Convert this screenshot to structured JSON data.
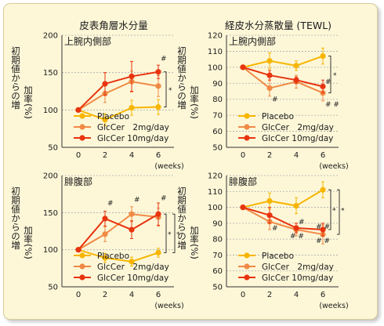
{
  "column_titles": [
    "皮表角層水分量",
    "経皮水分蒸散量 (TEWL)"
  ],
  "colors": {
    "Placebo": "#f7b500",
    "GlcCer 2mg/day": "#f08a45",
    "GlcCer 10mg/day": "#e8340f",
    "card_bg": "#fdf7d8"
  },
  "chart_data": [
    {
      "type": "line",
      "title": "皮表角層水分量",
      "subtitle": "上腕内側部",
      "ylabel": "初期値からの増加率(%)",
      "x_unit": "(weeks)",
      "x": [
        0,
        2,
        4,
        6
      ],
      "ylim": [
        50,
        200
      ],
      "yticks": [
        50,
        100,
        150,
        200
      ],
      "grid": "dashed-horizontal",
      "legend": "bottom",
      "series": [
        {
          "name": "Placebo",
          "values": [
            100,
            87,
            103,
            104
          ],
          "error": [
            0,
            8,
            10,
            10
          ]
        },
        {
          "name": "GlcCer　2mg/day",
          "values": [
            100,
            122,
            138,
            132
          ],
          "error": [
            0,
            12,
            14,
            14
          ]
        },
        {
          "name": "GlcCer  10mg/day",
          "values": [
            100,
            135,
            145,
            151
          ],
          "error": [
            0,
            15,
            20,
            9
          ]
        }
      ],
      "annotations": [
        {
          "text": "#",
          "x": 6,
          "y": 169
        },
        {
          "text": "*",
          "x_offset": "right-bracket",
          "y": 130
        }
      ]
    },
    {
      "type": "line",
      "title": "経皮水分蒸散量 (TEWL)",
      "subtitle": "上腕内側部",
      "ylabel": "初期値からの増加率(%)",
      "x_unit": "(weeks)",
      "x": [
        0,
        2,
        4,
        6
      ],
      "ylim": [
        50,
        120
      ],
      "yticks": [
        50,
        60,
        70,
        80,
        90,
        100,
        110,
        120
      ],
      "grid": "dashed-horizontal",
      "legend": "bottom",
      "series": [
        {
          "name": "Placebo",
          "values": [
            100,
            104,
            101,
            107
          ],
          "error": [
            0,
            5,
            3,
            5
          ]
        },
        {
          "name": "GlcCer　2mg/day",
          "values": [
            100,
            87,
            91,
            84
          ],
          "error": [
            0,
            5,
            4,
            5
          ]
        },
        {
          "name": "GlcCer  10mg/day",
          "values": [
            100,
            95,
            92,
            88
          ],
          "error": [
            0,
            3,
            2,
            4
          ]
        }
      ],
      "annotations": [
        {
          "text": "#",
          "x": 2,
          "y": 80
        },
        {
          "text": "#",
          "x": 6,
          "y": 91
        },
        {
          "text": "# #",
          "x": 6,
          "y": 77
        },
        {
          "text": "*",
          "x_offset": "right-bracket",
          "y": 98
        }
      ]
    },
    {
      "type": "line",
      "title": "皮表角層水分量",
      "subtitle": "腓腹部",
      "ylabel": "初期値からの増加率(%)",
      "x_unit": "(weeks)",
      "x": [
        0,
        2,
        4,
        6
      ],
      "ylim": [
        50,
        200
      ],
      "yticks": [
        50,
        100,
        150,
        200
      ],
      "grid": "dashed-horizontal",
      "legend": "bottom",
      "series": [
        {
          "name": "Placebo",
          "values": [
            100,
            89,
            84,
            96
          ],
          "error": [
            0,
            6,
            6,
            6
          ]
        },
        {
          "name": "GlcCer　2mg/day",
          "values": [
            100,
            121,
            148,
            144
          ],
          "error": [
            0,
            10,
            10,
            12
          ]
        },
        {
          "name": "GlcCer  10mg/day",
          "values": [
            100,
            142,
            127,
            148
          ],
          "error": [
            0,
            10,
            12,
            15
          ]
        }
      ],
      "annotations": [
        {
          "text": "#",
          "x": 2,
          "y": 163
        },
        {
          "text": "#",
          "x": 4,
          "y": 168
        },
        {
          "text": "#",
          "x": 6,
          "y": 170
        },
        {
          "text": "*",
          "x_offset": "right-bracket-inner",
          "y": 125
        },
        {
          "text": "*",
          "x_offset": "right-bracket-outer",
          "y": 120
        }
      ]
    },
    {
      "type": "line",
      "title": "経皮水分蒸散量 (TEWL)",
      "subtitle": "腓腹部",
      "ylabel": "初期値からの増加率(%)",
      "x_unit": "(weeks)",
      "x": [
        0,
        2,
        4,
        6
      ],
      "ylim": [
        50,
        120
      ],
      "yticks": [
        50,
        60,
        70,
        80,
        90,
        100,
        110,
        120
      ],
      "grid": "dashed-horizontal",
      "legend": "bottom",
      "series": [
        {
          "name": "Placebo",
          "values": [
            100,
            104,
            101,
            111
          ],
          "error": [
            0,
            5,
            5,
            5
          ]
        },
        {
          "name": "GlcCer　2mg/day",
          "values": [
            100,
            91,
            86,
            83
          ],
          "error": [
            0,
            5,
            4,
            6
          ]
        },
        {
          "name": "GlcCer  10mg/day",
          "values": [
            100,
            95,
            87,
            86
          ],
          "error": [
            0,
            5,
            3,
            4
          ]
        }
      ],
      "annotations": [
        {
          "text": "#",
          "x": 2,
          "y": 87
        },
        {
          "text": "# #",
          "x": 3.35,
          "y": 82
        },
        {
          "text": "#",
          "x": 4,
          "y": 91
        },
        {
          "text": "# #",
          "x": 5.3,
          "y": 88
        },
        {
          "text": "# #",
          "x": 5.3,
          "y": 79
        },
        {
          "text": "*",
          "x_offset": "right-bracket-inner",
          "y": 100
        },
        {
          "text": "*",
          "x_offset": "right-bracket-outer",
          "y": 99
        }
      ]
    }
  ]
}
